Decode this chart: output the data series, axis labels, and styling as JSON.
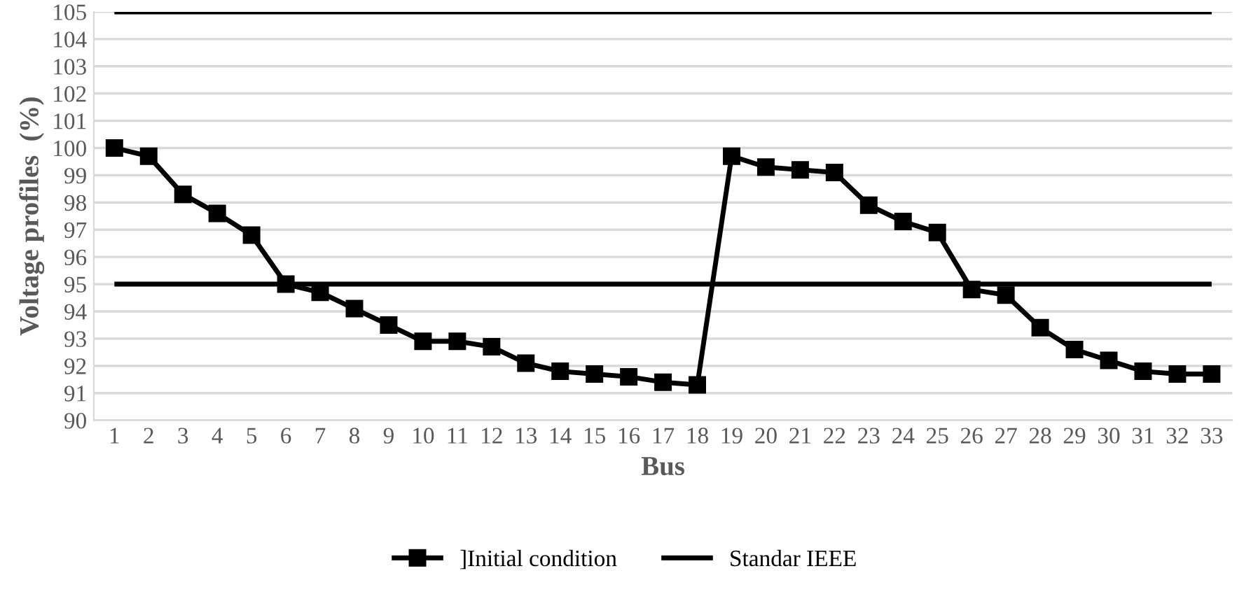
{
  "chart_data": {
    "type": "line",
    "xlabel": "Bus",
    "ylabel": "Voltage profiles  (%)",
    "categories": [
      "1",
      "2",
      "3",
      "4",
      "5",
      "6",
      "7",
      "8",
      "9",
      "10",
      "11",
      "12",
      "13",
      "14",
      "15",
      "16",
      "17",
      "18",
      "19",
      "20",
      "21",
      "22",
      "23",
      "24",
      "25",
      "26",
      "27",
      "28",
      "29",
      "30",
      "31",
      "32",
      "33"
    ],
    "series": [
      {
        "name": "]Initial condition",
        "color": "#000000",
        "marker": "square",
        "values": [
          100.0,
          99.7,
          98.3,
          97.6,
          96.8,
          95.0,
          94.7,
          94.1,
          93.5,
          92.9,
          92.9,
          92.7,
          92.1,
          91.8,
          91.7,
          91.6,
          91.4,
          91.3,
          99.7,
          99.3,
          99.2,
          99.1,
          97.9,
          97.3,
          96.9,
          94.8,
          94.6,
          93.4,
          92.6,
          92.2,
          91.8,
          91.7,
          91.7
        ]
      }
    ],
    "ref_lines": [
      {
        "axis": "y",
        "value": 105,
        "label": "Standar IEEE",
        "color": "#000000"
      },
      {
        "axis": "y",
        "value": 95,
        "label": null,
        "color": "#000000"
      }
    ],
    "ylim": [
      90,
      105
    ],
    "yticks": [
      90,
      91,
      92,
      93,
      94,
      95,
      96,
      97,
      98,
      99,
      100,
      101,
      102,
      103,
      104,
      105
    ],
    "grid": "y",
    "legend": "bottom"
  }
}
